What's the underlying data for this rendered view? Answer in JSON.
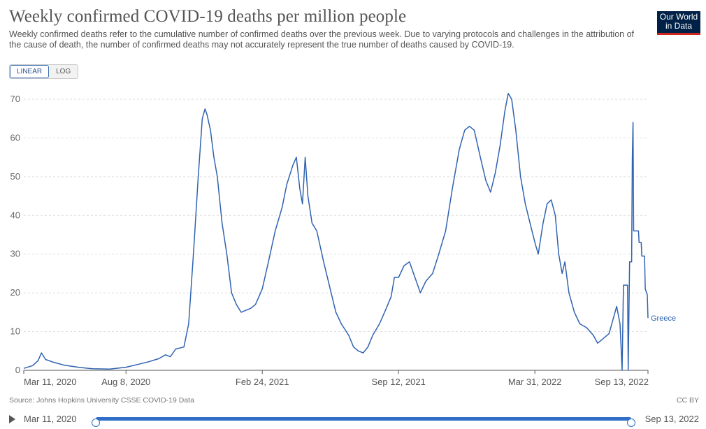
{
  "header": {
    "title": "Weekly confirmed COVID-19 deaths per million people",
    "subtitle": "Weekly confirmed deaths refer to the cumulative number of confirmed deaths over the previous week. Due to varying protocols and challenges in the attribution of the cause of death, the number of confirmed deaths may not accurately represent the true number of deaths caused by COVID-19.",
    "logo_line1": "Our World",
    "logo_line2": "in Data"
  },
  "scale_toggle": {
    "linear_label": "LINEAR",
    "log_label": "LOG",
    "selected": "LINEAR"
  },
  "footer": {
    "source": "Source: Johns Hopkins University CSSE COVID-19 Data",
    "license": "CC BY"
  },
  "timeline": {
    "start_label": "Mar 11, 2020",
    "end_label": "Sep 13, 2022"
  },
  "colors": {
    "series": "#3063b0",
    "grid": "#dddddd",
    "axis": "#555555"
  },
  "chart_data": {
    "type": "line",
    "title": "Weekly confirmed COVID-19 deaths per million people",
    "xlabel": "",
    "ylabel": "",
    "x_range": [
      "2020-03-11",
      "2022-09-13"
    ],
    "ylim": [
      0,
      70
    ],
    "y_ticks": [
      0,
      10,
      20,
      30,
      40,
      50,
      60,
      70
    ],
    "x_tick_labels": [
      {
        "date": "2020-03-11",
        "label": "Mar 11, 2020"
      },
      {
        "date": "2020-08-08",
        "label": "Aug 8, 2020"
      },
      {
        "date": "2021-02-24",
        "label": "Feb 24, 2021"
      },
      {
        "date": "2021-09-12",
        "label": "Sep 12, 2021"
      },
      {
        "date": "2022-03-31",
        "label": "Mar 31, 2022"
      },
      {
        "date": "2022-09-13",
        "label": "Sep 13, 2022"
      }
    ],
    "grid": "horizontal-dashed",
    "series": [
      {
        "name": "Greece",
        "points": [
          [
            "2020-03-11",
            0.5
          ],
          [
            "2020-03-24",
            1.2
          ],
          [
            "2020-04-01",
            2.5
          ],
          [
            "2020-04-06",
            4.5
          ],
          [
            "2020-04-12",
            2.8
          ],
          [
            "2020-04-25",
            2.0
          ],
          [
            "2020-05-10",
            1.3
          ],
          [
            "2020-05-30",
            0.8
          ],
          [
            "2020-06-20",
            0.4
          ],
          [
            "2020-07-15",
            0.3
          ],
          [
            "2020-08-08",
            0.8
          ],
          [
            "2020-08-25",
            1.5
          ],
          [
            "2020-09-10",
            2.2
          ],
          [
            "2020-09-25",
            3.0
          ],
          [
            "2020-10-05",
            4.0
          ],
          [
            "2020-10-12",
            3.5
          ],
          [
            "2020-10-20",
            5.5
          ],
          [
            "2020-11-01",
            6.0
          ],
          [
            "2020-11-08",
            12.0
          ],
          [
            "2020-11-15",
            30.0
          ],
          [
            "2020-11-22",
            50.0
          ],
          [
            "2020-11-28",
            65.0
          ],
          [
            "2020-12-02",
            67.5
          ],
          [
            "2020-12-05",
            66.0
          ],
          [
            "2020-12-10",
            62.0
          ],
          [
            "2020-12-15",
            55.0
          ],
          [
            "2020-12-20",
            50.0
          ],
          [
            "2020-12-27",
            38.0
          ],
          [
            "2021-01-03",
            30.0
          ],
          [
            "2021-01-10",
            20.0
          ],
          [
            "2021-01-17",
            17.0
          ],
          [
            "2021-01-24",
            15.0
          ],
          [
            "2021-01-31",
            15.5
          ],
          [
            "2021-02-07",
            16.0
          ],
          [
            "2021-02-14",
            17.0
          ],
          [
            "2021-02-24",
            21.0
          ],
          [
            "2021-03-05",
            28.0
          ],
          [
            "2021-03-15",
            36.0
          ],
          [
            "2021-03-25",
            42.0
          ],
          [
            "2021-04-01",
            48.0
          ],
          [
            "2021-04-10",
            53.0
          ],
          [
            "2021-04-15",
            55.0
          ],
          [
            "2021-04-20",
            47.0
          ],
          [
            "2021-04-24",
            43.0
          ],
          [
            "2021-04-28",
            55.0
          ],
          [
            "2021-05-02",
            45.0
          ],
          [
            "2021-05-08",
            38.0
          ],
          [
            "2021-05-15",
            36.0
          ],
          [
            "2021-05-25",
            28.0
          ],
          [
            "2021-06-05",
            20.0
          ],
          [
            "2021-06-12",
            15.0
          ],
          [
            "2021-06-20",
            12.0
          ],
          [
            "2021-07-01",
            9.0
          ],
          [
            "2021-07-08",
            6.0
          ],
          [
            "2021-07-15",
            5.0
          ],
          [
            "2021-07-22",
            4.5
          ],
          [
            "2021-07-29",
            6.0
          ],
          [
            "2021-08-05",
            9.0
          ],
          [
            "2021-08-15",
            12.0
          ],
          [
            "2021-08-25",
            16.0
          ],
          [
            "2021-09-01",
            19.0
          ],
          [
            "2021-09-06",
            24.0
          ],
          [
            "2021-09-12",
            24.0
          ],
          [
            "2021-09-20",
            27.0
          ],
          [
            "2021-09-28",
            28.0
          ],
          [
            "2021-10-06",
            24.0
          ],
          [
            "2021-10-14",
            20.0
          ],
          [
            "2021-10-22",
            23.0
          ],
          [
            "2021-11-01",
            25.0
          ],
          [
            "2021-11-10",
            30.0
          ],
          [
            "2021-11-20",
            36.0
          ],
          [
            "2021-11-30",
            47.0
          ],
          [
            "2021-12-10",
            57.0
          ],
          [
            "2021-12-18",
            62.0
          ],
          [
            "2021-12-25",
            63.0
          ],
          [
            "2022-01-01",
            62.0
          ],
          [
            "2022-01-10",
            55.0
          ],
          [
            "2022-01-18",
            49.0
          ],
          [
            "2022-01-25",
            46.0
          ],
          [
            "2022-02-01",
            51.0
          ],
          [
            "2022-02-08",
            58.0
          ],
          [
            "2022-02-15",
            67.0
          ],
          [
            "2022-02-20",
            71.5
          ],
          [
            "2022-02-25",
            70.0
          ],
          [
            "2022-03-03",
            62.0
          ],
          [
            "2022-03-10",
            50.0
          ],
          [
            "2022-03-17",
            43.0
          ],
          [
            "2022-03-24",
            38.0
          ],
          [
            "2022-03-31",
            33.0
          ],
          [
            "2022-04-05",
            30.0
          ],
          [
            "2022-04-12",
            38.0
          ],
          [
            "2022-04-18",
            43.0
          ],
          [
            "2022-04-24",
            44.0
          ],
          [
            "2022-04-30",
            40.0
          ],
          [
            "2022-05-05",
            30.0
          ],
          [
            "2022-05-10",
            25.0
          ],
          [
            "2022-05-14",
            28.0
          ],
          [
            "2022-05-20",
            20.0
          ],
          [
            "2022-05-28",
            15.0
          ],
          [
            "2022-06-05",
            12.0
          ],
          [
            "2022-06-15",
            11.0
          ],
          [
            "2022-06-25",
            9.0
          ],
          [
            "2022-07-01",
            7.0
          ],
          [
            "2022-07-08",
            8.0
          ],
          [
            "2022-07-18",
            9.5
          ],
          [
            "2022-07-25",
            14.0
          ],
          [
            "2022-07-29",
            16.5
          ],
          [
            "2022-08-03",
            12.0
          ],
          [
            "2022-08-06",
            0.0
          ],
          [
            "2022-08-08",
            22.0
          ],
          [
            "2022-08-14",
            22.0
          ],
          [
            "2022-08-15",
            0.0
          ],
          [
            "2022-08-17",
            28.0
          ],
          [
            "2022-08-20",
            28.0
          ],
          [
            "2022-08-21",
            55.0
          ],
          [
            "2022-08-22",
            64.0
          ],
          [
            "2022-08-23",
            36.0
          ],
          [
            "2022-08-30",
            36.0
          ],
          [
            "2022-08-31",
            33.0
          ],
          [
            "2022-09-03",
            33.0
          ],
          [
            "2022-09-04",
            29.5
          ],
          [
            "2022-09-08",
            29.5
          ],
          [
            "2022-09-09",
            21.0
          ],
          [
            "2022-09-11",
            20.0
          ],
          [
            "2022-09-12",
            19.5
          ],
          [
            "2022-09-13",
            13.5
          ]
        ]
      }
    ]
  }
}
